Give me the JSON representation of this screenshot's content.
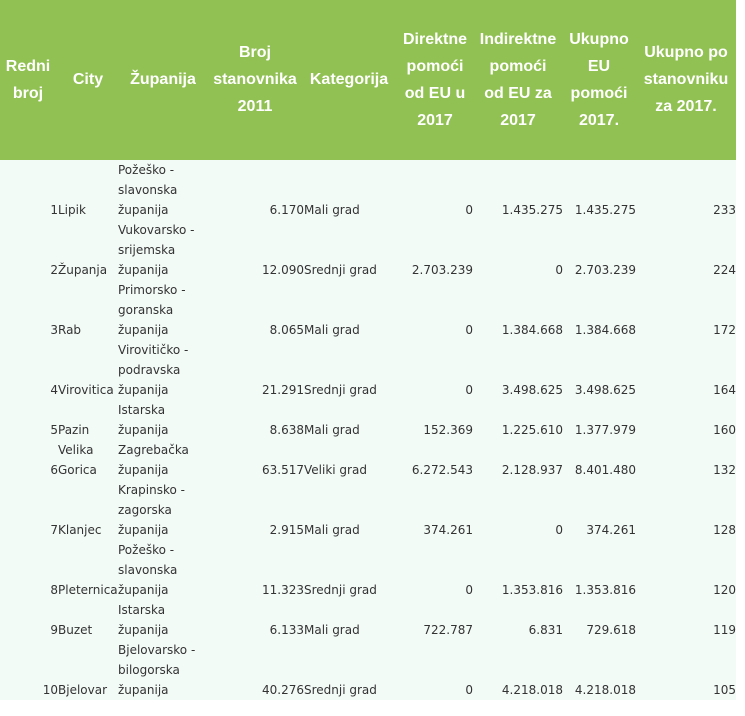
{
  "table": {
    "headers": {
      "rank": "Redni\nbroj",
      "city": "City",
      "county": "Županija",
      "population": "Broj\nstanovnika\n2011",
      "category": "Kategorija",
      "direct": "Direktne\npomoći\nod EU u\n2017",
      "indirect": "Indirektne\npomoći\nod EU za\n2017",
      "total": "Ukupno\nEU\npomoći\n2017.",
      "per_capita": "Ukupno po\nstanovniku\nza 2017."
    },
    "rows": [
      {
        "rank": "1",
        "city": "Lipik",
        "county": "Požeško -\nslavonska\nžupanija",
        "population": "6.170",
        "category": "Mali grad",
        "direct": "0",
        "indirect": "1.435.275",
        "total": "1.435.275",
        "per_capita": "233"
      },
      {
        "rank": "2",
        "city": "Županja",
        "county": "Vukovarsko -\nsrijemska\nžupanija",
        "population": "12.090",
        "category": "Srednji grad",
        "direct": "2.703.239",
        "indirect": "0",
        "total": "2.703.239",
        "per_capita": "224"
      },
      {
        "rank": "3",
        "city": "Rab",
        "county": "Primorsko -\ngoranska\nžupanija",
        "population": "8.065",
        "category": "Mali grad",
        "direct": "0",
        "indirect": "1.384.668",
        "total": "1.384.668",
        "per_capita": "172"
      },
      {
        "rank": "4",
        "city": "Virovitica",
        "county": "Virovitičko -\npodravska\nžupanija",
        "population": "21.291",
        "category": "Srednji grad",
        "direct": "0",
        "indirect": "3.498.625",
        "total": "3.498.625",
        "per_capita": "164"
      },
      {
        "rank": "5",
        "city": "Pazin",
        "county": "Istarska\nžupanija",
        "population": "8.638",
        "category": "Mali grad",
        "direct": "152.369",
        "indirect": "1.225.610",
        "total": "1.377.979",
        "per_capita": "160"
      },
      {
        "rank": "6",
        "city": "Velika\nGorica",
        "county": "Zagrebačka\nžupanija",
        "population": "63.517",
        "category": "Veliki grad",
        "direct": "6.272.543",
        "indirect": "2.128.937",
        "total": "8.401.480",
        "per_capita": "132"
      },
      {
        "rank": "7",
        "city": "Klanjec",
        "county": "Krapinsko -\nzagorska\nžupanija",
        "population": "2.915",
        "category": "Mali grad",
        "direct": "374.261",
        "indirect": "0",
        "total": "374.261",
        "per_capita": "128"
      },
      {
        "rank": "8",
        "city": "Pleternica",
        "county": "Požeško -\nslavonska\nžupanija",
        "population": "11.323",
        "category": "Srednji grad",
        "direct": "0",
        "indirect": "1.353.816",
        "total": "1.353.816",
        "per_capita": "120"
      },
      {
        "rank": "9",
        "city": "Buzet",
        "county": "Istarska\nžupanija",
        "population": "6.133",
        "category": "Mali grad",
        "direct": "722.787",
        "indirect": "6.831",
        "total": "729.618",
        "per_capita": "119"
      },
      {
        "rank": "10",
        "city": "Bjelovar",
        "county": "Bjelovarsko -\nbilogorska\nžupanija",
        "population": "40.276",
        "category": "Srednji grad",
        "direct": "0",
        "indirect": "4.218.018",
        "total": "4.218.018",
        "per_capita": "105"
      }
    ]
  }
}
